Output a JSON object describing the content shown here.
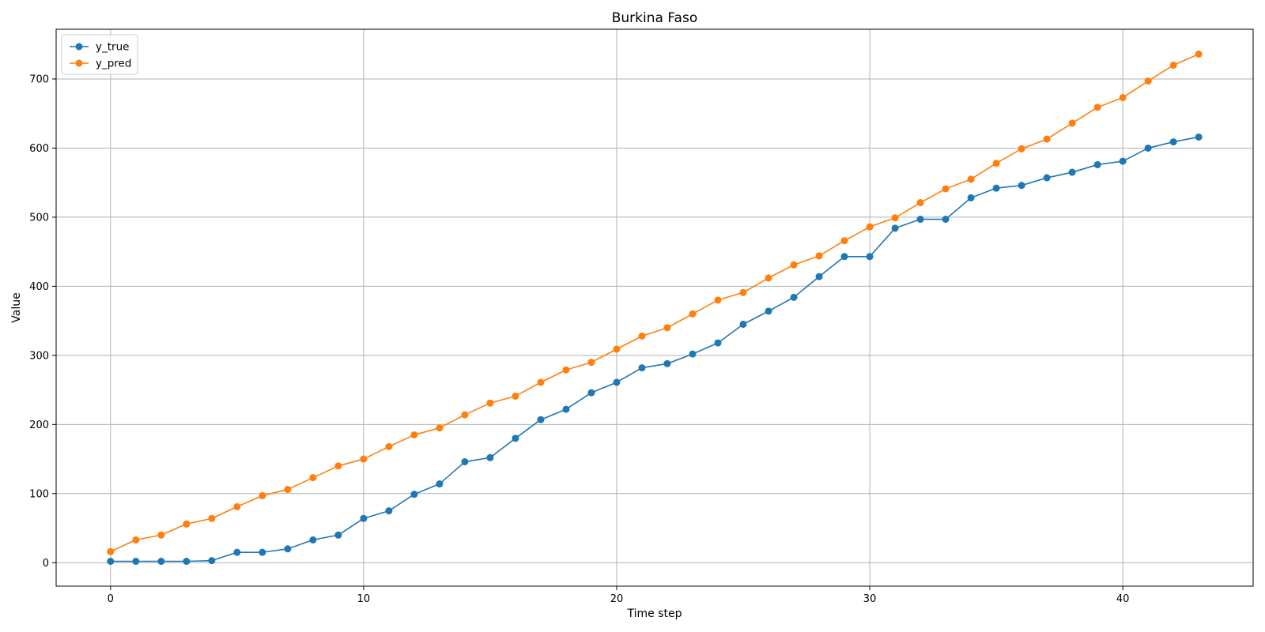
{
  "chart_data": {
    "type": "line",
    "title": "Burkina Faso",
    "xlabel": "Time step",
    "ylabel": "Value",
    "xlim": [
      -2.15,
      45.15
    ],
    "ylim": [
      -34,
      772
    ],
    "xticks": [
      0,
      10,
      20,
      30,
      40
    ],
    "yticks": [
      0,
      100,
      200,
      300,
      400,
      500,
      600,
      700
    ],
    "grid": true,
    "legend_position": "top-left",
    "x": [
      0,
      1,
      2,
      3,
      4,
      5,
      6,
      7,
      8,
      9,
      10,
      11,
      12,
      13,
      14,
      15,
      16,
      17,
      18,
      19,
      20,
      21,
      22,
      23,
      24,
      25,
      26,
      27,
      28,
      29,
      30,
      31,
      32,
      33,
      34,
      35,
      36,
      37,
      38,
      39,
      40,
      41,
      42,
      43
    ],
    "series": [
      {
        "name": "y_true",
        "color": "#1f77b4",
        "values": [
          2,
          2,
          2,
          2,
          3,
          15,
          15,
          20,
          33,
          40,
          64,
          75,
          99,
          114,
          146,
          152,
          180,
          207,
          222,
          246,
          261,
          282,
          288,
          302,
          318,
          345,
          364,
          384,
          414,
          443,
          443,
          484,
          497,
          497,
          528,
          542,
          546,
          557,
          565,
          576,
          581,
          600,
          609,
          616
        ]
      },
      {
        "name": "y_pred",
        "color": "#ff7f0e",
        "values": [
          16,
          33,
          40,
          56,
          64,
          81,
          97,
          106,
          123,
          140,
          150,
          168,
          185,
          195,
          214,
          231,
          241,
          261,
          279,
          290,
          309,
          328,
          340,
          360,
          380,
          391,
          412,
          431,
          444,
          466,
          486,
          499,
          521,
          541,
          555,
          578,
          599,
          613,
          636,
          659,
          673,
          697,
          720,
          736
        ]
      }
    ]
  }
}
